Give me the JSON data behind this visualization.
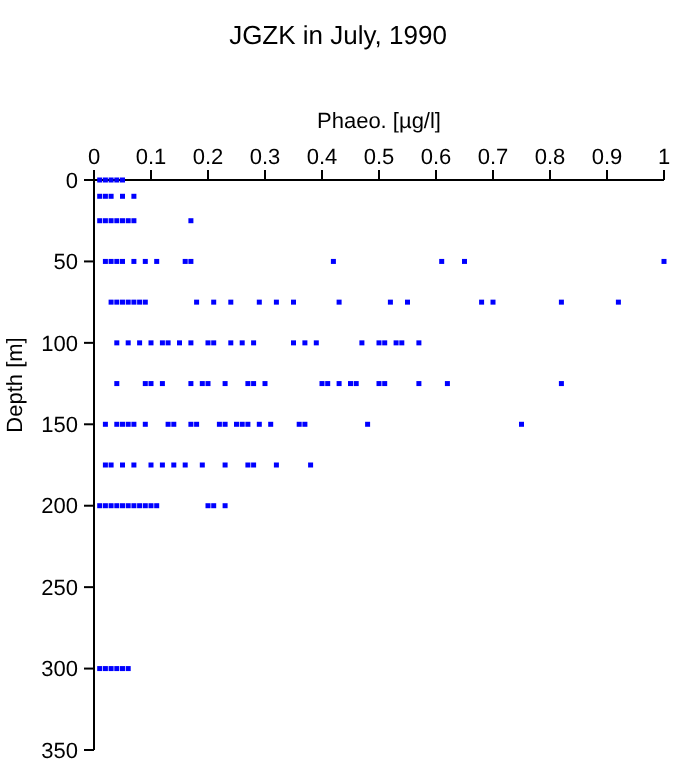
{
  "chart_data": {
    "type": "scatter",
    "title": "JGZK in July, 1990",
    "xlabel": "Phaeo. [µg/l]",
    "ylabel": "Depth [m]",
    "xlim": [
      0,
      1
    ],
    "xticks": [
      0,
      0.1,
      0.2,
      0.3,
      0.4,
      0.5,
      0.6,
      0.7,
      0.8,
      0.9,
      1
    ],
    "ylim": [
      350,
      0
    ],
    "yticks": [
      0,
      50,
      100,
      150,
      200,
      250,
      300,
      350
    ],
    "marker": "square",
    "grid": false,
    "series": [
      {
        "color": "#0000ff",
        "x": [
          0.01,
          0.02,
          0.03,
          0.04,
          0.05,
          0.01,
          0.02,
          0.03,
          0.05,
          0.07,
          0.01,
          0.02,
          0.03,
          0.04,
          0.05,
          0.06,
          0.07,
          0.17,
          0.02,
          0.03,
          0.04,
          0.05,
          0.07,
          0.09,
          0.11,
          0.16,
          0.17,
          0.42,
          0.61,
          0.65,
          1.0,
          0.03,
          0.04,
          0.05,
          0.06,
          0.07,
          0.08,
          0.09,
          0.18,
          0.21,
          0.24,
          0.29,
          0.32,
          0.35,
          0.43,
          0.52,
          0.55,
          0.68,
          0.7,
          0.82,
          0.92,
          0.04,
          0.06,
          0.08,
          0.1,
          0.12,
          0.13,
          0.15,
          0.17,
          0.2,
          0.21,
          0.24,
          0.26,
          0.28,
          0.35,
          0.37,
          0.39,
          0.47,
          0.5,
          0.51,
          0.53,
          0.54,
          0.57,
          0.04,
          0.09,
          0.1,
          0.12,
          0.17,
          0.19,
          0.2,
          0.23,
          0.27,
          0.28,
          0.3,
          0.4,
          0.41,
          0.43,
          0.45,
          0.46,
          0.5,
          0.51,
          0.57,
          0.62,
          0.82,
          0.02,
          0.04,
          0.05,
          0.06,
          0.07,
          0.09,
          0.13,
          0.14,
          0.17,
          0.18,
          0.22,
          0.23,
          0.25,
          0.26,
          0.27,
          0.29,
          0.31,
          0.36,
          0.37,
          0.48,
          0.75,
          0.02,
          0.03,
          0.05,
          0.07,
          0.1,
          0.12,
          0.14,
          0.16,
          0.19,
          0.23,
          0.27,
          0.28,
          0.32,
          0.38,
          0.01,
          0.02,
          0.03,
          0.04,
          0.05,
          0.06,
          0.07,
          0.08,
          0.09,
          0.1,
          0.11,
          0.2,
          0.21,
          0.23,
          0.01,
          0.02,
          0.03,
          0.04,
          0.05,
          0.06
        ],
        "values": [
          0,
          0,
          0,
          0,
          0,
          10,
          10,
          10,
          10,
          10,
          25,
          25,
          25,
          25,
          25,
          25,
          25,
          25,
          50,
          50,
          50,
          50,
          50,
          50,
          50,
          50,
          50,
          50,
          50,
          50,
          50,
          75,
          75,
          75,
          75,
          75,
          75,
          75,
          75,
          75,
          75,
          75,
          75,
          75,
          75,
          75,
          75,
          75,
          75,
          75,
          75,
          100,
          100,
          100,
          100,
          100,
          100,
          100,
          100,
          100,
          100,
          100,
          100,
          100,
          100,
          100,
          100,
          100,
          100,
          100,
          100,
          100,
          100,
          125,
          125,
          125,
          125,
          125,
          125,
          125,
          125,
          125,
          125,
          125,
          125,
          125,
          125,
          125,
          125,
          125,
          125,
          125,
          125,
          125,
          150,
          150,
          150,
          150,
          150,
          150,
          150,
          150,
          150,
          150,
          150,
          150,
          150,
          150,
          150,
          150,
          150,
          150,
          150,
          150,
          150,
          175,
          175,
          175,
          175,
          175,
          175,
          175,
          175,
          175,
          175,
          175,
          175,
          175,
          175,
          200,
          200,
          200,
          200,
          200,
          200,
          200,
          200,
          200,
          200,
          200,
          200,
          200,
          200,
          300,
          300,
          300,
          300,
          300,
          300
        ]
      }
    ]
  }
}
